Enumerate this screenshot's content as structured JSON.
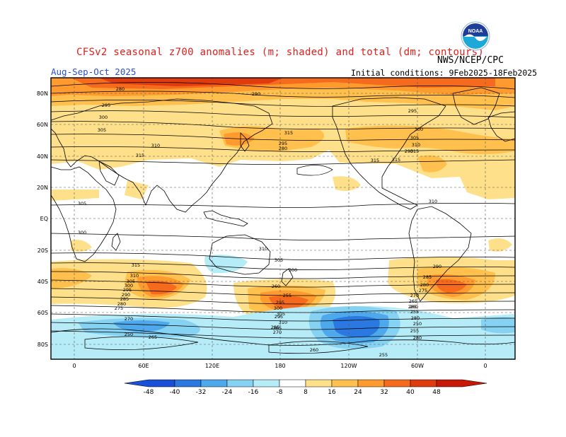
{
  "header": {
    "title": "CFSv2 seasonal z700 anomalies (m; shaded) and total (dm; contours)",
    "agency": "NWS/NCEP/CPC",
    "season": "Aug-Sep-Oct 2025",
    "initial_conditions": "Initial conditions: 9Feb2025-18Feb2025",
    "logo_text": "NOAA"
  },
  "map": {
    "lat_labels": [
      "80N",
      "60N",
      "40N",
      "20N",
      "EQ",
      "20S",
      "40S",
      "60S",
      "80S"
    ],
    "lon_labels": [
      "0",
      "60E",
      "120E",
      "180",
      "120W",
      "60W",
      "0"
    ],
    "contour_labels": [
      "280",
      "290",
      "295",
      "300",
      "305",
      "310",
      "315",
      "315",
      "315",
      "310",
      "305",
      "300",
      "295",
      "280",
      "290",
      "295",
      "300",
      "305",
      "310",
      "315",
      "315",
      "300",
      "305",
      "310",
      "315",
      "310",
      "305",
      "300",
      "295",
      "290",
      "285",
      "280",
      "275",
      "270",
      "265",
      "260",
      "255",
      "250",
      "255",
      "250",
      "280",
      "255",
      "260",
      "265",
      "270",
      "275",
      "280",
      "285",
      "290",
      "295",
      "300",
      "305",
      "310",
      "285",
      "270",
      "260",
      "255",
      "265",
      "295",
      "280",
      "285"
    ],
    "colors": {
      "land_outline": "#000000",
      "grid_dash": "#555555",
      "positive_8_16": "#ffe08a",
      "positive_16_24": "#ffc04d",
      "positive_24_32": "#ff9a2e",
      "positive_32_40": "#f56a1c",
      "positive_40_48": "#e03a0f",
      "negative_8_16": "#b6ecf7",
      "negative_16_24": "#86d2f3",
      "negative_24_32": "#4ea8ec",
      "negative_32_40": "#2a78e0"
    }
  },
  "colorbar": {
    "labels": [
      "-48",
      "-40",
      "-32",
      "-24",
      "-16",
      "-8",
      "8",
      "16",
      "24",
      "32",
      "40",
      "48"
    ],
    "colors": [
      "#1a50d8",
      "#2a78e0",
      "#4ea8ec",
      "#86d2f3",
      "#b6ecf7",
      "#ffffff",
      "#ffe08a",
      "#ffc04d",
      "#ff9a2e",
      "#f56a1c",
      "#e03a0f",
      "#c81808"
    ]
  }
}
